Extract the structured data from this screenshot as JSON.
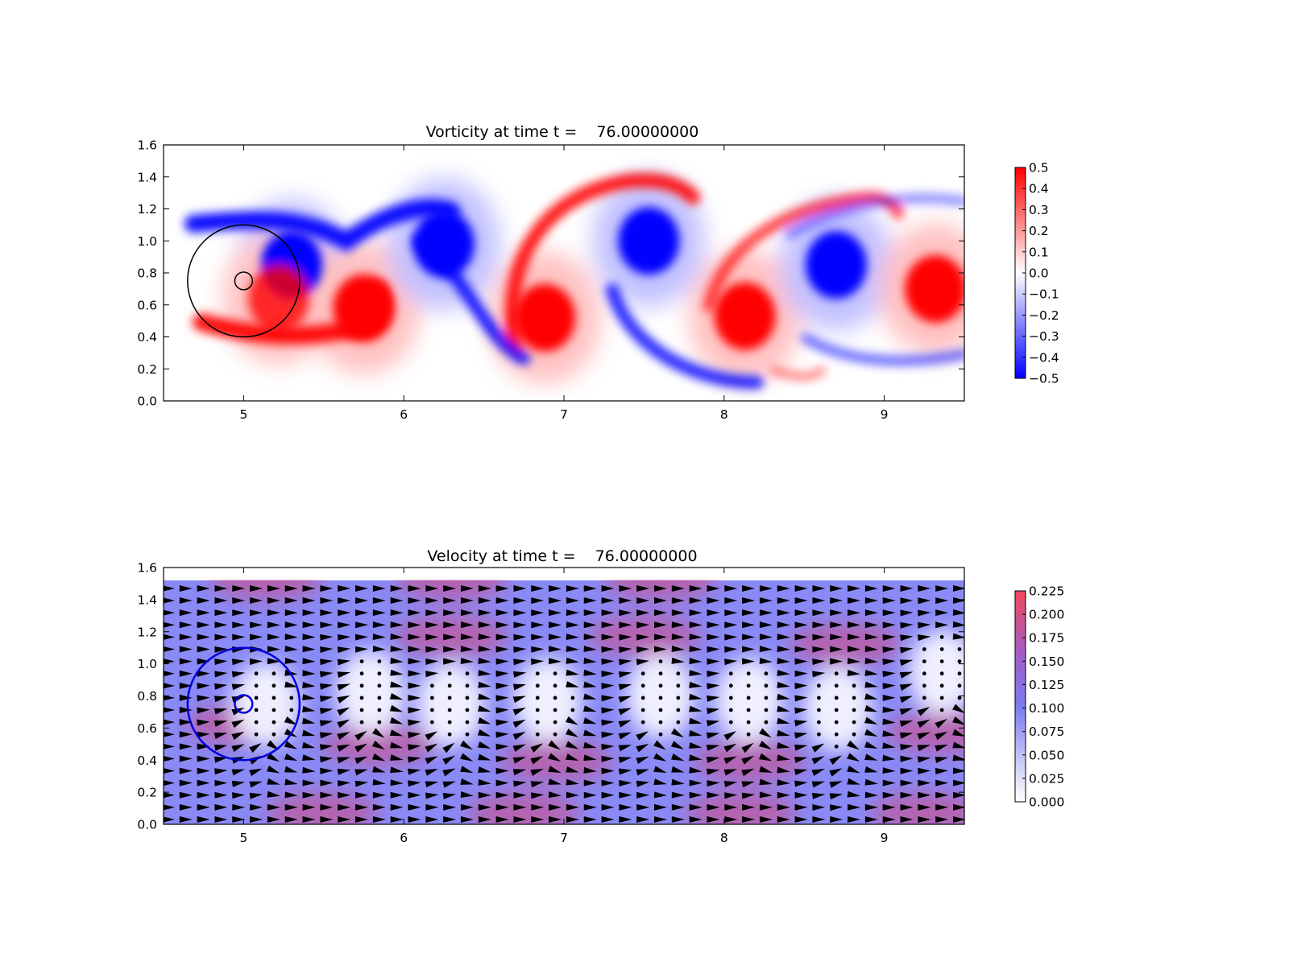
{
  "chart_data": [
    {
      "type": "heatmap",
      "title": "Vorticity at time t =    76.00000000",
      "xlim": [
        4.5,
        9.5
      ],
      "ylim": [
        0.0,
        1.6
      ],
      "x_ticks": [
        "5",
        "6",
        "7",
        "8",
        "9"
      ],
      "y_ticks": [
        "0.0",
        "0.2",
        "0.4",
        "0.6",
        "0.8",
        "1.0",
        "1.2",
        "1.4",
        "1.6"
      ],
      "colormap": "bwr",
      "colorbar": {
        "range": [
          -0.5,
          0.5
        ],
        "ticks": [
          "0.5",
          "0.4",
          "0.3",
          "0.2",
          "0.1",
          "0.0",
          "−0.1",
          "−0.2",
          "−0.3",
          "−0.4",
          "−0.5"
        ]
      },
      "vortices": [
        {
          "x": 5.3,
          "y": 0.85,
          "value": -0.5
        },
        {
          "x": 5.22,
          "y": 0.64,
          "value": 0.4
        },
        {
          "x": 5.75,
          "y": 0.58,
          "value": 0.5
        },
        {
          "x": 6.25,
          "y": 0.98,
          "value": -0.5
        },
        {
          "x": 6.88,
          "y": 0.52,
          "value": 0.5
        },
        {
          "x": 7.53,
          "y": 1.0,
          "value": -0.5
        },
        {
          "x": 8.13,
          "y": 0.53,
          "value": 0.5
        },
        {
          "x": 8.7,
          "y": 0.85,
          "value": -0.5
        },
        {
          "x": 9.32,
          "y": 0.7,
          "value": 0.5
        }
      ],
      "circles": [
        {
          "cx": 5.0,
          "cy": 0.75,
          "r": 0.35,
          "color": "#000000"
        },
        {
          "cx": 5.0,
          "cy": 0.75,
          "r": 0.055,
          "color": "#000000"
        }
      ]
    },
    {
      "type": "heatmap",
      "title": "Velocity at time t =    76.00000000",
      "xlim": [
        4.5,
        9.5
      ],
      "ylim": [
        0.0,
        1.6
      ],
      "x_ticks": [
        "5",
        "6",
        "7",
        "8",
        "9"
      ],
      "y_ticks": [
        "0.0",
        "0.2",
        "0.4",
        "0.6",
        "0.8",
        "1.0",
        "1.2",
        "1.4",
        "1.6"
      ],
      "overlay": "quiver",
      "colormap": "white-blue-red",
      "colorbar": {
        "range": [
          0.0,
          0.225
        ],
        "ticks": [
          "0.225",
          "0.200",
          "0.175",
          "0.150",
          "0.125",
          "0.100",
          "0.075",
          "0.050",
          "0.025",
          "0.000"
        ]
      },
      "field_top_y": 1.52,
      "circles": [
        {
          "cx": 5.0,
          "cy": 0.75,
          "r": 0.35,
          "color": "#0000dd"
        },
        {
          "cx": 5.0,
          "cy": 0.75,
          "r": 0.055,
          "color": "#0000dd"
        }
      ]
    }
  ]
}
